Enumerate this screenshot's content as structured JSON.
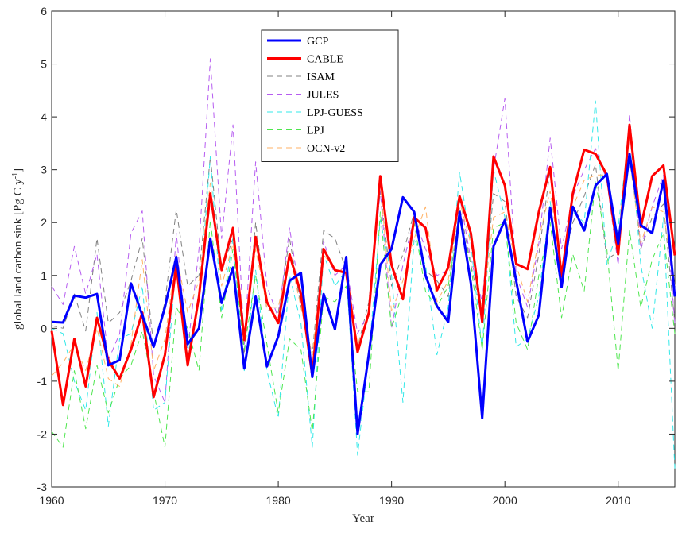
{
  "chart_data": {
    "type": "line",
    "xlabel": "Year",
    "ylabel": "global land carbon sink [Pg C y",
    "ylabel_sup": "-1",
    "ylabel_close": "]",
    "xlim": [
      1960,
      2015
    ],
    "ylim": [
      -3,
      6
    ],
    "xticks": [
      1960,
      1970,
      1980,
      1990,
      2000,
      2010
    ],
    "yticks": [
      -3,
      -2,
      -1,
      0,
      1,
      2,
      3,
      4,
      5,
      6
    ],
    "grid": false,
    "legend_position": "top-center",
    "x": [
      1960,
      1961,
      1962,
      1963,
      1964,
      1965,
      1966,
      1967,
      1968,
      1969,
      1970,
      1971,
      1972,
      1973,
      1974,
      1975,
      1976,
      1977,
      1978,
      1979,
      1980,
      1981,
      1982,
      1983,
      1984,
      1985,
      1986,
      1987,
      1988,
      1989,
      1990,
      1991,
      1992,
      1993,
      1994,
      1995,
      1996,
      1997,
      1998,
      1999,
      2000,
      2001,
      2002,
      2003,
      2004,
      2005,
      2006,
      2007,
      2008,
      2009,
      2010,
      2011,
      2012,
      2013,
      2014,
      2015
    ],
    "series": [
      {
        "name": "GCP",
        "color": "#0000ff",
        "style": "solid",
        "width": 3,
        "values": [
          0.12,
          0.11,
          0.62,
          0.58,
          0.65,
          -0.7,
          -0.6,
          0.85,
          0.25,
          -0.35,
          0.4,
          1.35,
          -0.3,
          0.0,
          1.7,
          0.48,
          1.15,
          -0.76,
          0.6,
          -0.72,
          -0.15,
          0.9,
          1.05,
          -0.92,
          0.65,
          -0.02,
          1.35,
          -2.0,
          -0.48,
          1.2,
          1.5,
          2.48,
          2.2,
          1.0,
          0.42,
          0.12,
          2.2,
          0.85,
          -1.7,
          1.55,
          2.05,
          0.9,
          -0.25,
          0.25,
          2.28,
          0.78,
          2.3,
          1.85,
          2.7,
          2.92,
          1.6,
          3.3,
          1.95,
          1.8,
          2.8,
          0.6
        ]
      },
      {
        "name": "CABLE",
        "color": "#ff0000",
        "style": "solid",
        "width": 3,
        "values": [
          -0.05,
          -1.45,
          -0.2,
          -1.1,
          0.2,
          -0.6,
          -0.95,
          -0.4,
          0.3,
          -1.3,
          -0.5,
          1.2,
          -0.7,
          0.6,
          2.55,
          1.1,
          1.9,
          -0.22,
          1.73,
          0.5,
          0.1,
          1.4,
          0.65,
          -0.9,
          1.5,
          1.1,
          1.05,
          -0.45,
          0.3,
          2.88,
          1.2,
          0.55,
          2.1,
          1.9,
          0.72,
          1.15,
          2.5,
          1.8,
          0.12,
          3.25,
          2.7,
          1.22,
          1.12,
          2.2,
          3.05,
          0.98,
          2.55,
          3.38,
          3.3,
          2.9,
          1.4,
          3.85,
          1.92,
          2.88,
          3.08,
          1.38
        ]
      },
      {
        "name": "ISAM",
        "color": "#808080",
        "style": "dashed",
        "width": 1,
        "values": [
          0.05,
          0.0,
          0.65,
          -0.05,
          1.7,
          0.1,
          0.3,
          0.9,
          1.7,
          -0.35,
          0.5,
          2.25,
          0.8,
          1.0,
          3.25,
          1.1,
          1.7,
          -0.5,
          2.0,
          0.35,
          0.3,
          1.7,
          0.4,
          -0.5,
          1.85,
          1.7,
          1.1,
          -0.35,
          0.5,
          2.6,
          0.8,
          1.4,
          2.2,
          1.1,
          0.9,
          0.6,
          2.3,
          1.2,
          0.25,
          2.55,
          2.4,
          0.6,
          0.2,
          1.4,
          3.0,
          1.05,
          2.0,
          2.5,
          3.1,
          1.3,
          1.45,
          3.35,
          1.5,
          2.1,
          2.35,
          0.1
        ]
      },
      {
        "name": "JULES",
        "color": "#b65cf0",
        "style": "dashed",
        "width": 1,
        "values": [
          0.8,
          0.45,
          1.55,
          0.65,
          1.4,
          -0.6,
          -0.1,
          1.8,
          2.22,
          -0.9,
          -1.4,
          1.8,
          -0.4,
          1.5,
          5.1,
          1.7,
          3.85,
          -0.3,
          3.15,
          0.8,
          0.2,
          1.9,
          0.5,
          -0.8,
          1.65,
          1.0,
          1.2,
          -0.1,
          0.3,
          2.6,
          0.0,
          1.2,
          2.1,
          1.5,
          1.0,
          1.1,
          2.5,
          1.3,
          0.5,
          3.0,
          4.35,
          1.0,
          0.4,
          1.6,
          3.6,
          1.5,
          2.5,
          3.0,
          3.4,
          2.8,
          1.2,
          4.05,
          1.5,
          2.3,
          2.9,
          0.1
        ]
      },
      {
        "name": "LPJ-GUESS",
        "color": "#33e8e8",
        "style": "dashed",
        "width": 1,
        "values": [
          0.0,
          -0.1,
          -1.0,
          -1.55,
          0.3,
          -1.85,
          -0.2,
          -0.1,
          0.8,
          -1.55,
          -1.4,
          1.3,
          -0.5,
          0.5,
          3.25,
          0.3,
          1.7,
          -0.8,
          1.1,
          -0.8,
          -1.7,
          1.0,
          0.1,
          -2.25,
          1.4,
          0.8,
          1.1,
          -2.4,
          -0.5,
          2.05,
          1.0,
          -1.4,
          1.7,
          1.2,
          -0.5,
          0.4,
          2.95,
          1.6,
          -0.4,
          3.0,
          2.1,
          -0.35,
          -0.2,
          0.6,
          2.4,
          0.8,
          2.2,
          2.0,
          4.3,
          1.2,
          1.9,
          3.8,
          1.2,
          0.0,
          2.1,
          -2.65
        ]
      },
      {
        "name": "LPJ",
        "color": "#4ee64e",
        "style": "dashed",
        "width": 1,
        "values": [
          -1.95,
          -2.25,
          -0.8,
          -1.9,
          -0.7,
          -1.6,
          -0.95,
          -0.7,
          -0.05,
          -1.2,
          -2.25,
          0.4,
          0.0,
          -0.8,
          2.05,
          0.2,
          1.5,
          -0.4,
          1.0,
          -0.3,
          -1.6,
          -0.2,
          -0.4,
          -1.95,
          0.6,
          0.5,
          0.8,
          -1.2,
          -1.2,
          2.2,
          0.0,
          0.7,
          2.0,
          0.7,
          0.4,
          0.8,
          2.05,
          1.2,
          -0.4,
          1.9,
          2.0,
          0.1,
          -0.4,
          1.0,
          2.0,
          0.2,
          1.4,
          0.7,
          2.8,
          1.5,
          -0.8,
          1.85,
          0.4,
          1.3,
          1.8,
          -0.1
        ]
      },
      {
        "name": "OCN-v2",
        "color": "#ffb266",
        "style": "dashed",
        "width": 1,
        "values": [
          -0.9,
          -0.65,
          -0.3,
          -0.8,
          0.0,
          -0.95,
          -1.1,
          -0.3,
          1.3,
          -0.8,
          -0.2,
          1.4,
          0.3,
          0.9,
          2.75,
          0.8,
          1.6,
          -0.1,
          1.5,
          0.4,
          0.4,
          1.4,
          0.4,
          -0.5,
          1.4,
          1.1,
          1.1,
          -0.3,
          0.2,
          2.75,
          0.3,
          0.9,
          1.7,
          2.3,
          0.5,
          0.9,
          2.4,
          1.6,
          0.3,
          2.1,
          2.2,
          1.2,
          0.5,
          1.7,
          2.6,
          1.1,
          2.3,
          2.8,
          2.9,
          2.9,
          1.5,
          3.2,
          1.6,
          2.3,
          2.2,
          0.8
        ]
      }
    ]
  }
}
